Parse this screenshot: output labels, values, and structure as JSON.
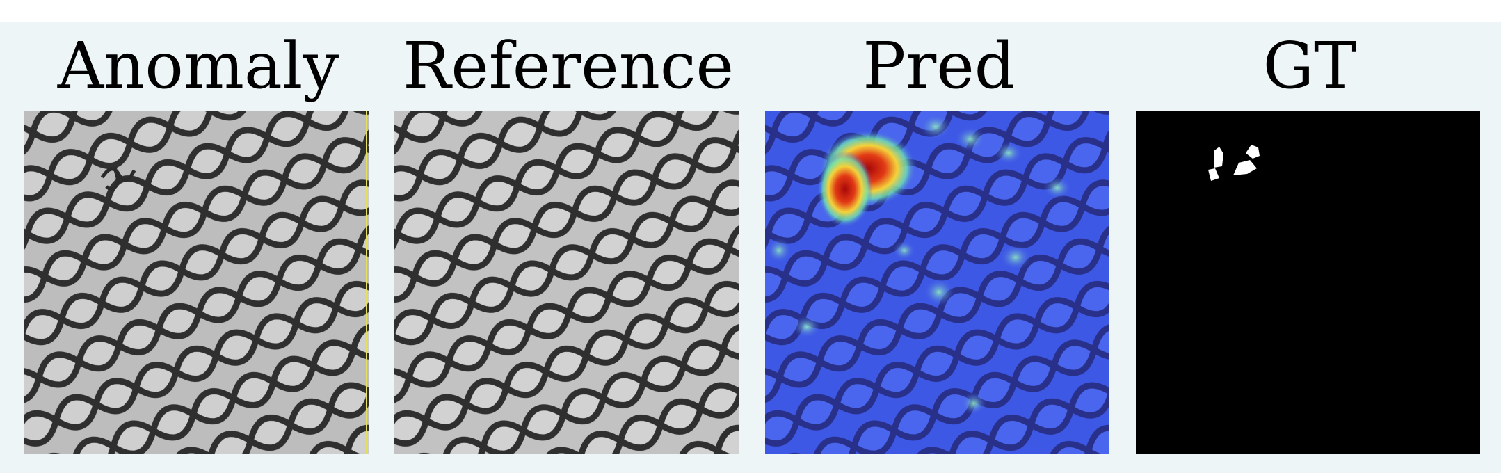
{
  "panels": [
    {
      "title": "Anomaly",
      "image": "grid-mesh-anomaly"
    },
    {
      "title": "Reference",
      "image": "grid-mesh-reference"
    },
    {
      "title": "Pred",
      "image": "anomaly-heatmap"
    },
    {
      "title": "GT",
      "image": "ground-truth-mask"
    }
  ],
  "colors": {
    "background": "#eef5f7",
    "mesh_bar": "#2f2f2f",
    "mesh_cell": "#bdbdbd",
    "heat_base": "#3a52e0",
    "heat_hot": "#c0150f",
    "mask_bg": "#000000",
    "mask_fg": "#ffffff"
  }
}
